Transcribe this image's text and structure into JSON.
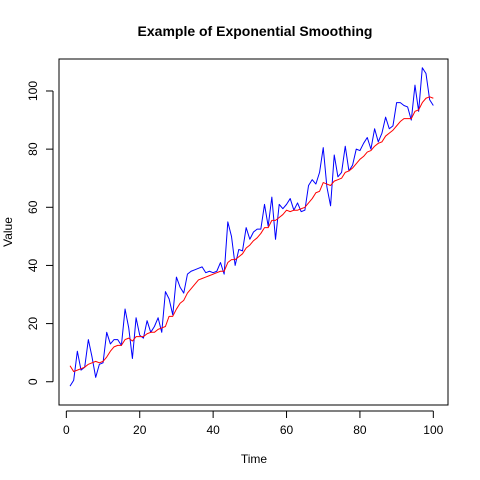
{
  "chart_data": {
    "type": "line",
    "title": "Example of Exponential Smoothing",
    "xlabel": "Time",
    "ylabel": "Value",
    "xlim": [
      -2,
      104
    ],
    "ylim": [
      -8,
      111
    ],
    "xticks": [
      0,
      20,
      40,
      60,
      80,
      100
    ],
    "yticks": [
      0,
      20,
      40,
      60,
      80,
      100
    ],
    "grid": false,
    "legend": "none",
    "x": [
      1,
      2,
      3,
      4,
      5,
      6,
      7,
      8,
      9,
      10,
      11,
      12,
      13,
      14,
      15,
      16,
      17,
      18,
      19,
      20,
      21,
      22,
      23,
      24,
      25,
      26,
      27,
      28,
      29,
      30,
      31,
      32,
      33,
      34,
      35,
      36,
      37,
      38,
      39,
      40,
      41,
      42,
      43,
      44,
      45,
      46,
      47,
      48,
      49,
      50,
      51,
      52,
      53,
      54,
      55,
      56,
      57,
      58,
      59,
      60,
      61,
      62,
      63,
      64,
      65,
      66,
      67,
      68,
      69,
      70,
      71,
      72,
      73,
      74,
      75,
      76,
      77,
      78,
      79,
      80,
      81,
      82,
      83,
      84,
      85,
      86,
      87,
      88,
      89,
      90,
      91,
      92,
      93,
      94,
      95,
      96,
      97,
      98,
      99,
      100
    ],
    "series": [
      {
        "color": "#0000ff",
        "values": [
          -1.5,
          0.5,
          10.5,
          4,
          5,
          14.5,
          8.5,
          1.5,
          6,
          6.5,
          17,
          13,
          14.5,
          14.5,
          12.5,
          25,
          18.5,
          8,
          22,
          16,
          15,
          21,
          17,
          19,
          22,
          17,
          31,
          28.5,
          23,
          36,
          32.5,
          30.5,
          37,
          38,
          38.5,
          39,
          39.5,
          37.5,
          38,
          37.5,
          38,
          41,
          37,
          55,
          50,
          40,
          45.5,
          45,
          53,
          49,
          51.5,
          52.5,
          52.5,
          61,
          53.5,
          63.5,
          49,
          61,
          59.5,
          61,
          63,
          59,
          61.5,
          58.5,
          59,
          67.5,
          69.5,
          68,
          72,
          80.5,
          67,
          60.5,
          78,
          70.5,
          72,
          81,
          72.5,
          74.5,
          80,
          79.5,
          82,
          84,
          80,
          87,
          82.5,
          85.5,
          91,
          87,
          88,
          96,
          96,
          95,
          94.5,
          90,
          102,
          93,
          108,
          106,
          97,
          95
        ]
      },
      {
        "color": "#ff0000",
        "values": [
          5.5,
          3.5,
          4,
          4.5,
          5,
          6,
          6.5,
          7,
          6.5,
          7,
          8.5,
          10.5,
          12,
          12.5,
          12.5,
          14.5,
          15,
          14,
          15.5,
          15.5,
          15.5,
          16.5,
          17,
          17,
          18,
          18.5,
          19,
          22.5,
          22.5,
          25,
          27,
          28,
          30.5,
          32,
          33.5,
          35,
          35.5,
          36,
          36.5,
          37,
          37.5,
          38,
          38,
          41,
          42,
          42,
          43,
          44,
          46,
          47,
          48.5,
          49.5,
          51,
          53,
          53,
          55.5,
          55.5,
          56.5,
          57.5,
          59,
          58.5,
          59,
          59,
          59.5,
          60,
          61.5,
          63,
          65,
          65.5,
          68.5,
          68,
          67.5,
          69,
          69.5,
          70,
          72,
          72.5,
          73.5,
          75,
          76.5,
          77.5,
          79,
          79.5,
          81,
          82,
          82.5,
          84.5,
          85.5,
          86.5,
          88,
          89.5,
          90.5,
          90.5,
          90.5,
          93,
          93.5,
          96,
          97.5,
          98,
          97.5
        ]
      }
    ]
  }
}
